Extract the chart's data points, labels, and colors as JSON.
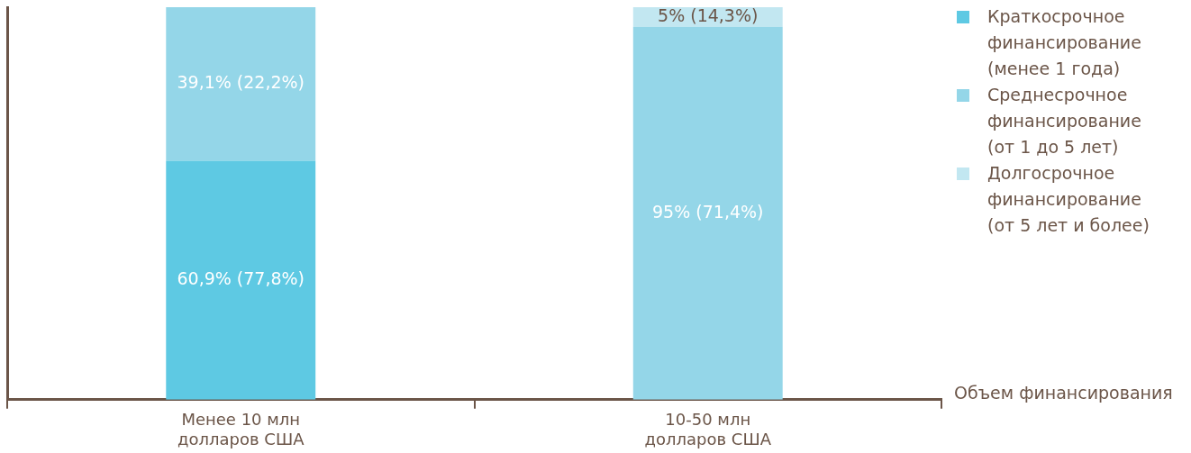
{
  "chart_data": {
    "type": "bar",
    "stacked": true,
    "xlabel": "Объем финансирования",
    "categories": [
      "Менее 10 млн\nдолларов США",
      "10-50 млн\nдолларов США"
    ],
    "ylim": [
      0,
      100
    ],
    "tick_labels": "x",
    "grid": false,
    "legend": "top right",
    "series": [
      {
        "name": "Краткосрочное финансирование (менее 1 года)",
        "color": "#5ec9e3",
        "values": [
          60.9,
          null
        ],
        "value_labels": [
          "60,9% (77,8%)",
          null
        ]
      },
      {
        "name": "Среднесрочное финансирование (от 1 до 5 лет)",
        "color": "#94d6e8",
        "values": [
          39.1,
          95
        ],
        "value_labels": [
          "39,1% (22,2%)",
          "95% (71,4%)"
        ]
      },
      {
        "name": "Долгосрочное финансирование (от 5 лет и более)",
        "color": "#c2e7f1",
        "values": [
          null,
          5
        ],
        "value_labels": [
          null,
          "5% (14,3%)"
        ]
      }
    ]
  }
}
